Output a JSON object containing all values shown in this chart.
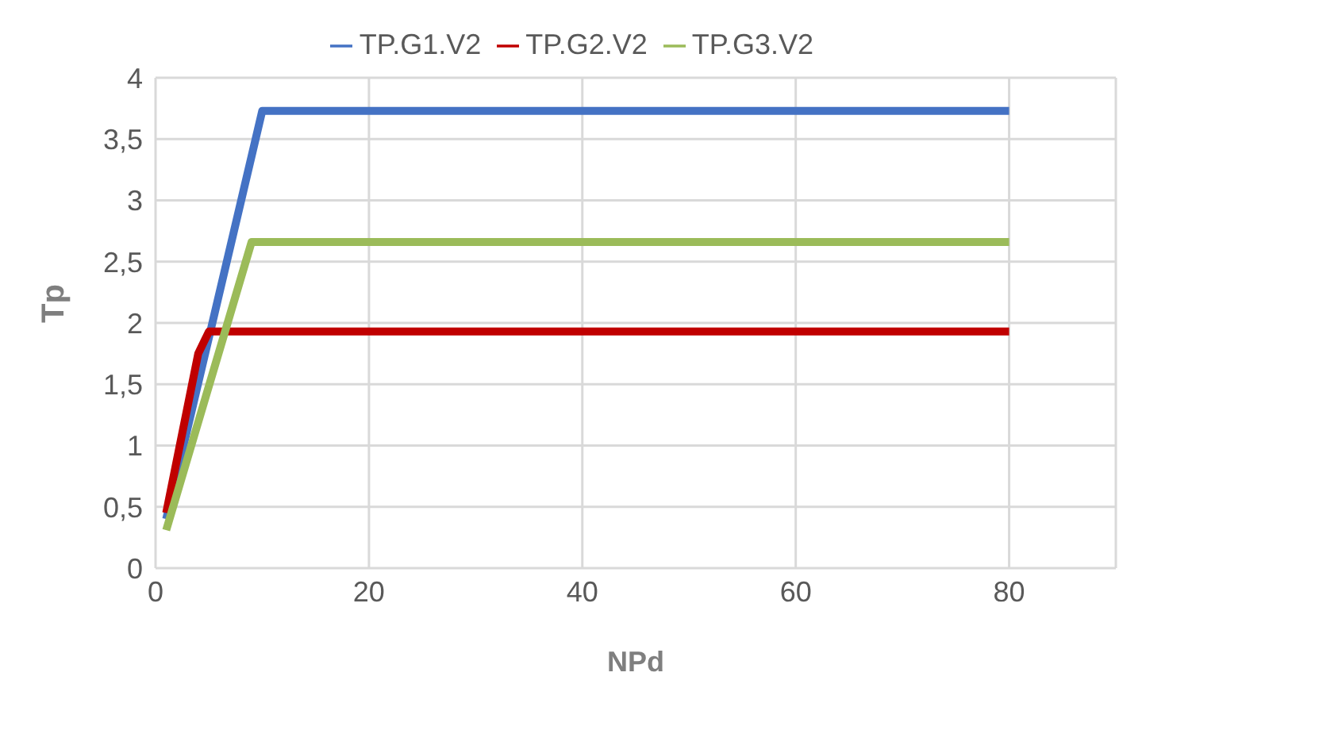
{
  "chart_data": {
    "type": "line",
    "xlabel": "NPd",
    "ylabel": "Tp",
    "xlim": [
      0,
      90
    ],
    "xticks": [
      0,
      20,
      40,
      60,
      80
    ],
    "ylim": [
      0,
      4
    ],
    "yticks": [
      0,
      {
        "value": 0.5,
        "label": "0,5"
      },
      1,
      {
        "value": 1.5,
        "label": "1,5"
      },
      2,
      {
        "value": 2.5,
        "label": "2,5"
      },
      3,
      {
        "value": 3.5,
        "label": "3,5"
      },
      4
    ],
    "grid": true,
    "legend": "top",
    "marker": "none",
    "line_style": "solid",
    "series": [
      {
        "name": "TP.G1.V2",
        "color": "#4472c4",
        "x": [
          1,
          10,
          80
        ],
        "values": [
          0.4,
          3.73,
          3.73
        ]
      },
      {
        "name": "TP.G2.V2",
        "color": "#c00000",
        "x": [
          1,
          4,
          5,
          80
        ],
        "values": [
          0.45,
          1.75,
          1.93,
          1.93
        ]
      },
      {
        "name": "TP.G3.V2",
        "color": "#9bbb59",
        "x": [
          1,
          9,
          80
        ],
        "values": [
          0.31,
          2.66,
          2.66
        ]
      }
    ]
  }
}
